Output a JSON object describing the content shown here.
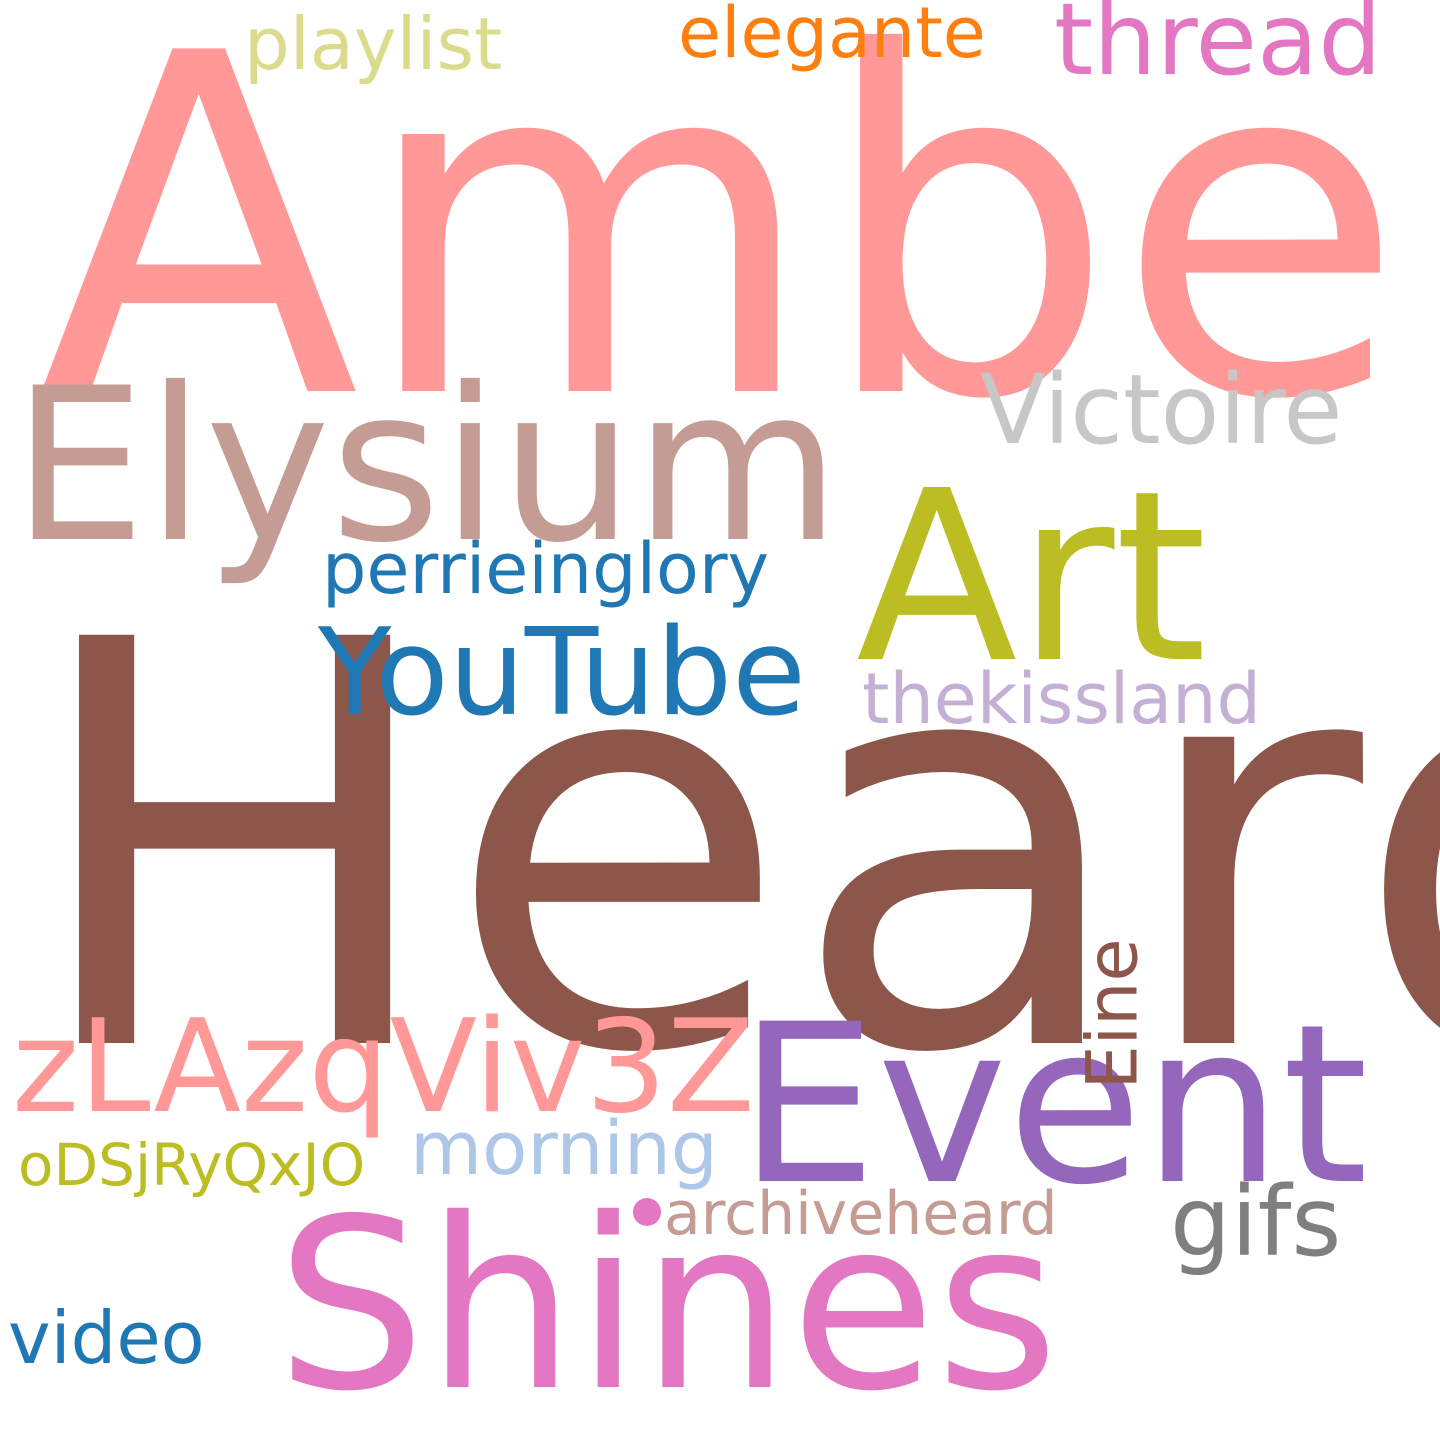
{
  "words": {
    "amber": {
      "text": "Amber",
      "color": "#ff9896"
    },
    "heard": {
      "text": "Heard",
      "color": "#8c564b"
    },
    "elysium": {
      "text": "Elysium",
      "color": "#c49c94"
    },
    "art": {
      "text": "Art",
      "color": "#bcbd22"
    },
    "shines": {
      "text": "Shines",
      "color": "#e377c2"
    },
    "event": {
      "text": "Event",
      "color": "#9467bd"
    },
    "youtube": {
      "text": "YouTube",
      "color": "#1f77b4"
    },
    "zlazqviv3z": {
      "text": "zLAzqViv3Z",
      "color": "#ff9896"
    },
    "victoire": {
      "text": "Victoire",
      "color": "#c7c7c7"
    },
    "thread": {
      "text": "thread",
      "color": "#e377c2"
    },
    "elegante": {
      "text": "elegante",
      "color": "#ff7f0e"
    },
    "playlist": {
      "text": "playlist",
      "color": "#dbdb8d"
    },
    "perrieinglory": {
      "text": "perrieinglory",
      "color": "#1f77b4"
    },
    "thekissland": {
      "text": "thekissland",
      "color": "#c5b0d5"
    },
    "eine": {
      "text": "Eine",
      "color": "#8c564b"
    },
    "gifs": {
      "text": "gifs",
      "color": "#7f7f7f"
    },
    "morning": {
      "text": "morning",
      "color": "#aec7e8"
    },
    "odsjryqxjo": {
      "text": "oDSjRyQxJO",
      "color": "#bcbd22"
    },
    "archiveheard": {
      "text": "archiveheard",
      "color": "#c49c94"
    },
    "video": {
      "text": "video",
      "color": "#1f77b4"
    }
  },
  "bullet_color": "#e377c2"
}
